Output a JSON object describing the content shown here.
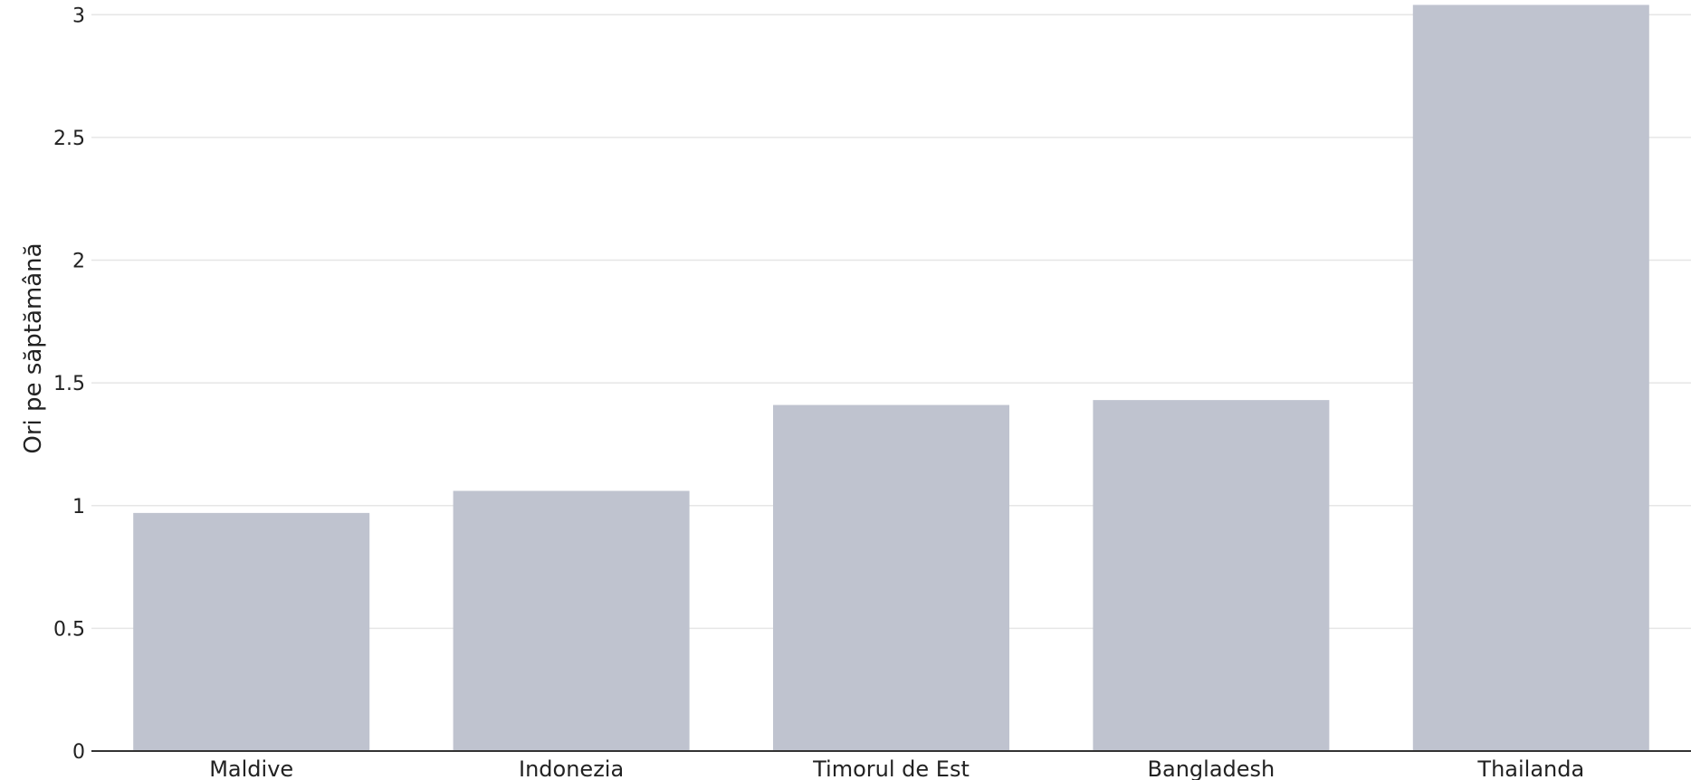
{
  "chart_data": {
    "type": "bar",
    "categories": [
      "Maldive",
      "Indonezia",
      "Timorul de Est",
      "Bangladesh",
      "Thailanda"
    ],
    "values": [
      0.97,
      1.06,
      1.41,
      1.43,
      3.04
    ],
    "ylabel": "Ori pe săptămână",
    "xlabel": "",
    "ylim": [
      0,
      3.06
    ],
    "yticks": [
      0,
      0.5,
      1,
      1.5,
      2,
      2.5,
      3
    ],
    "ytick_labels": [
      "0",
      "0.5",
      "1",
      "1.5",
      "2",
      "2.5",
      "3"
    ],
    "grid": true,
    "legend": "none",
    "colors": {
      "bar": "#bfc3cf",
      "grid": "#e6e6e6",
      "axis": "#333333"
    }
  }
}
